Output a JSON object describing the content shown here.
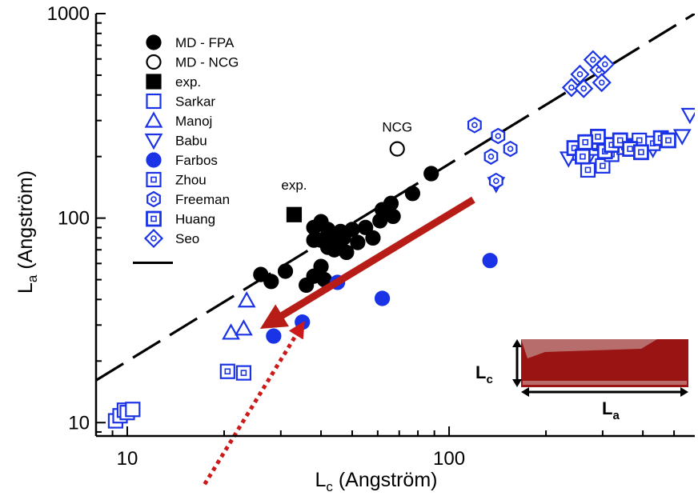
{
  "chart_data": {
    "type": "scatter",
    "x_scale": "log",
    "y_scale": "log",
    "xlim": [
      8,
      580
    ],
    "ylim": [
      8.6,
      1000
    ],
    "xlabel": "L",
    "xlabel_sub": "c",
    "xlabel_rest": " (Angström)",
    "ylabel": "L",
    "ylabel_sub": "a",
    "ylabel_rest": " (Angström)",
    "x_ticks": [
      10,
      100
    ],
    "x_tick_labels": [
      "10",
      "100"
    ],
    "y_ticks": [
      10,
      100,
      1000
    ],
    "y_tick_labels": [
      "10",
      "100",
      "1000"
    ],
    "grid": false,
    "legend_position": "top-left",
    "series": [
      {
        "name": "MD - FPA",
        "marker": "circle",
        "filled": true,
        "color": "#000000",
        "points": [
          [
            26,
            53
          ],
          [
            28,
            49
          ],
          [
            31,
            55
          ],
          [
            36,
            47
          ],
          [
            38,
            52
          ],
          [
            38,
            78
          ],
          [
            38,
            90
          ],
          [
            40,
            96
          ],
          [
            40,
            78
          ],
          [
            40,
            58
          ],
          [
            41,
            50
          ],
          [
            42,
            72
          ],
          [
            42,
            88
          ],
          [
            43,
            82
          ],
          [
            44,
            70
          ],
          [
            45,
            75
          ],
          [
            46,
            86
          ],
          [
            47,
            80
          ],
          [
            48,
            68
          ],
          [
            50,
            88
          ],
          [
            52,
            76
          ],
          [
            55,
            90
          ],
          [
            58,
            80
          ],
          [
            61,
            97
          ],
          [
            62,
            110
          ],
          [
            66,
            118
          ],
          [
            67,
            102
          ],
          [
            77,
            132
          ],
          [
            88,
            165
          ]
        ]
      },
      {
        "name": "MD - NCG",
        "marker": "circle",
        "filled": false,
        "color": "#000000",
        "points": [
          [
            69,
            218
          ]
        ]
      },
      {
        "name": "exp.",
        "marker": "square",
        "filled": true,
        "color": "#000000",
        "points": [
          [
            33,
            104
          ]
        ]
      },
      {
        "name": "Sarkar",
        "marker": "square",
        "filled": false,
        "color": "#1a33e6",
        "points": [
          [
            9.2,
            10.2
          ],
          [
            9.5,
            10.8
          ],
          [
            9.8,
            11.5
          ],
          [
            10,
            11.2
          ],
          [
            10.4,
            11.6
          ]
        ]
      },
      {
        "name": "Manoj",
        "marker": "triangle-up",
        "filled": false,
        "color": "#1a33e6",
        "points": [
          [
            21,
            27.5
          ],
          [
            23,
            28.8
          ],
          [
            23.5,
            39.5
          ]
        ]
      },
      {
        "name": "Babu",
        "marker": "triangle-down",
        "filled": false,
        "color": "#1a33e6",
        "points": [
          [
            140,
            147
          ],
          [
            235,
            196
          ],
          [
            272,
            200
          ],
          [
            320,
            212
          ],
          [
            380,
            228
          ],
          [
            430,
            218
          ],
          [
            530,
            252
          ],
          [
            560,
            320
          ]
        ]
      },
      {
        "name": "Farbos",
        "marker": "circle",
        "filled": true,
        "color": "#1a33e6",
        "points": [
          [
            28.5,
            26.5
          ],
          [
            35,
            31
          ],
          [
            45,
            48.5
          ],
          [
            62,
            40.5
          ],
          [
            134,
            62
          ]
        ]
      },
      {
        "name": "Zhou",
        "marker": "square-dot",
        "filled": false,
        "color": "#1a33e6",
        "points": [
          [
            20.5,
            17.8
          ],
          [
            23,
            17.5
          ],
          [
            255,
            208
          ],
          [
            270,
            172
          ],
          [
            285,
            220
          ],
          [
            300,
            180
          ],
          [
            320,
            205
          ],
          [
            350,
            222
          ],
          [
            390,
            240
          ],
          [
            430,
            232
          ]
        ]
      },
      {
        "name": "Freeman",
        "marker": "hexagon-dot",
        "filled": false,
        "color": "#1a33e6",
        "points": [
          [
            120,
            285
          ],
          [
            135,
            200
          ],
          [
            142,
            252
          ],
          [
            155,
            218
          ],
          [
            140,
            152
          ]
        ]
      },
      {
        "name": "Huang",
        "marker": "square-dot-bold",
        "filled": false,
        "color": "#1a33e6",
        "points": [
          [
            245,
            220
          ],
          [
            260,
            200
          ],
          [
            275,
            235
          ],
          [
            290,
            250
          ],
          [
            305,
            212
          ],
          [
            320,
            228
          ],
          [
            340,
            240
          ],
          [
            365,
            218
          ],
          [
            395,
            210
          ],
          [
            455,
            246
          ],
          [
            480,
            240
          ],
          [
            265,
            235
          ]
        ]
      },
      {
        "name": "Seo",
        "marker": "diamond-dot",
        "filled": false,
        "color": "#1a33e6",
        "points": [
          [
            240,
            435
          ],
          [
            255,
            505
          ],
          [
            262,
            430
          ],
          [
            280,
            595
          ],
          [
            292,
            530
          ],
          [
            298,
            460
          ],
          [
            305,
            565
          ]
        ]
      }
    ],
    "fit_line": {
      "name": "",
      "style": "dashed",
      "color": "#000000",
      "points": [
        [
          8,
          16.1
        ],
        [
          580,
          1000
        ]
      ]
    },
    "annotations": [
      {
        "text": "NCG",
        "x": 69,
        "y": 265
      },
      {
        "text": "exp.",
        "x": 33,
        "y": 138
      }
    ],
    "arrows": [
      {
        "style": "solid",
        "color": "#b81c16",
        "from": [
          119,
          123
        ],
        "to": [
          28,
          31
        ]
      },
      {
        "style": "dotted",
        "color": "#cc1a1a",
        "from": [
          17.4,
          5.0
        ],
        "to": [
          34.5,
          29
        ]
      }
    ],
    "inset": {
      "height_label": "L",
      "height_sub": "c",
      "width_label": "L",
      "width_sub": "a",
      "fill": "#9b1414"
    }
  }
}
